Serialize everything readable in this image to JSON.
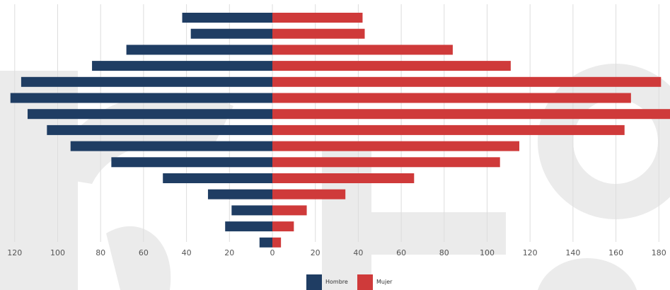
{
  "chart_data": {
    "type": "bar",
    "orientation": "horizontal",
    "layout": "population-pyramid",
    "title": "",
    "xlabel": "",
    "ylabel": "",
    "left_ticks": [
      120,
      100,
      80,
      60,
      40,
      20,
      0
    ],
    "right_ticks": [
      20,
      40,
      60,
      80,
      100,
      120,
      140,
      160,
      180
    ],
    "grid": true,
    "legend_position": "bottom-center",
    "series": [
      {
        "name": "Hombre",
        "color": "#1f3d63",
        "values": [
          42,
          38,
          68,
          84,
          117,
          122,
          114,
          105,
          94,
          75,
          51,
          30,
          19,
          22,
          6
        ]
      },
      {
        "name": "Mujer",
        "color": "#cf3a3a",
        "values": [
          42,
          43,
          84,
          111,
          181,
          167,
          186,
          164,
          115,
          106,
          66,
          34,
          16,
          10,
          4
        ]
      }
    ],
    "grid_color": "#dddddd",
    "watermark_color": "#ebebeb"
  }
}
